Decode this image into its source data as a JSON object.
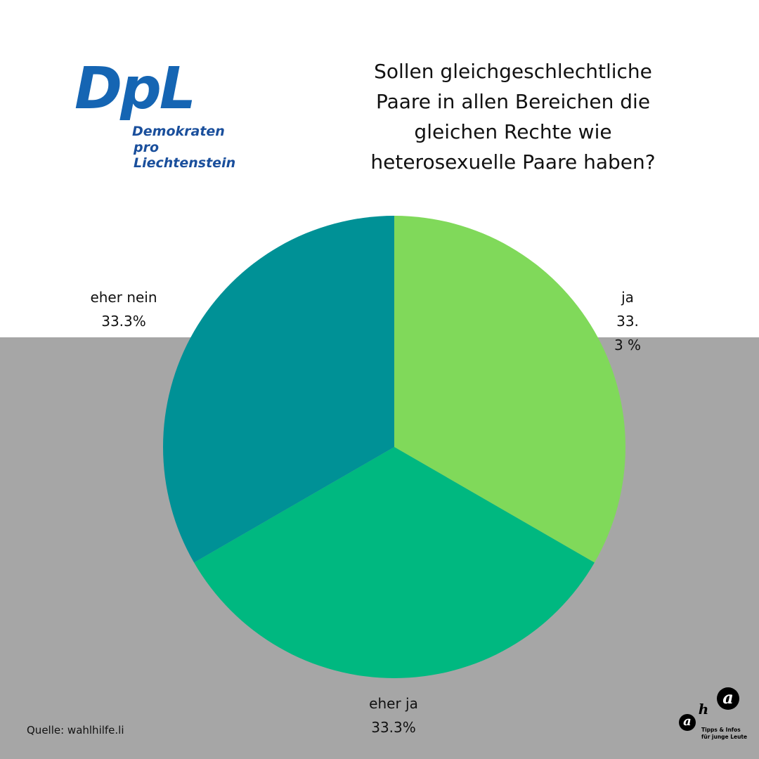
{
  "logo": {
    "mark": "DpL",
    "line1": "Demokraten",
    "line2": "pro Liechtenstein"
  },
  "footer": {
    "source": "Quelle: wahlhilfe.li",
    "aha_logo": {
      "letters": [
        "a",
        "h",
        "a"
      ],
      "tagline1": "Tipps & Infos",
      "tagline2": "für junge Leute"
    }
  },
  "colors": {
    "ja": "#80d95a",
    "eher_ja": "#00b880",
    "eher_nein": "#009196",
    "background_bottom": "#a6a6a6",
    "logo_blue": "#1565b3"
  },
  "chart_data": {
    "type": "pie",
    "title": "Sollen gleichgeschlechtliche Paare in allen Bereichen die gleichen Rechte wie heterosexuelle Paare haben?",
    "title_lines": [
      "Sollen gleichgeschlechtliche",
      "Paare in allen Bereichen die",
      "gleichen Rechte wie",
      "heterosexuelle Paare haben?"
    ],
    "slices": [
      {
        "label": "ja",
        "value": 33.3,
        "value_label": "33.3 %",
        "color": "#80d95a"
      },
      {
        "label": "eher ja",
        "value": 33.3,
        "value_label": "33.3%",
        "color": "#00b880"
      },
      {
        "label": "eher nein",
        "value": 33.3,
        "value_label": "33.3%",
        "color": "#009196"
      }
    ],
    "start_angle_deg": 0,
    "direction": "clockwise",
    "legend": "none"
  }
}
